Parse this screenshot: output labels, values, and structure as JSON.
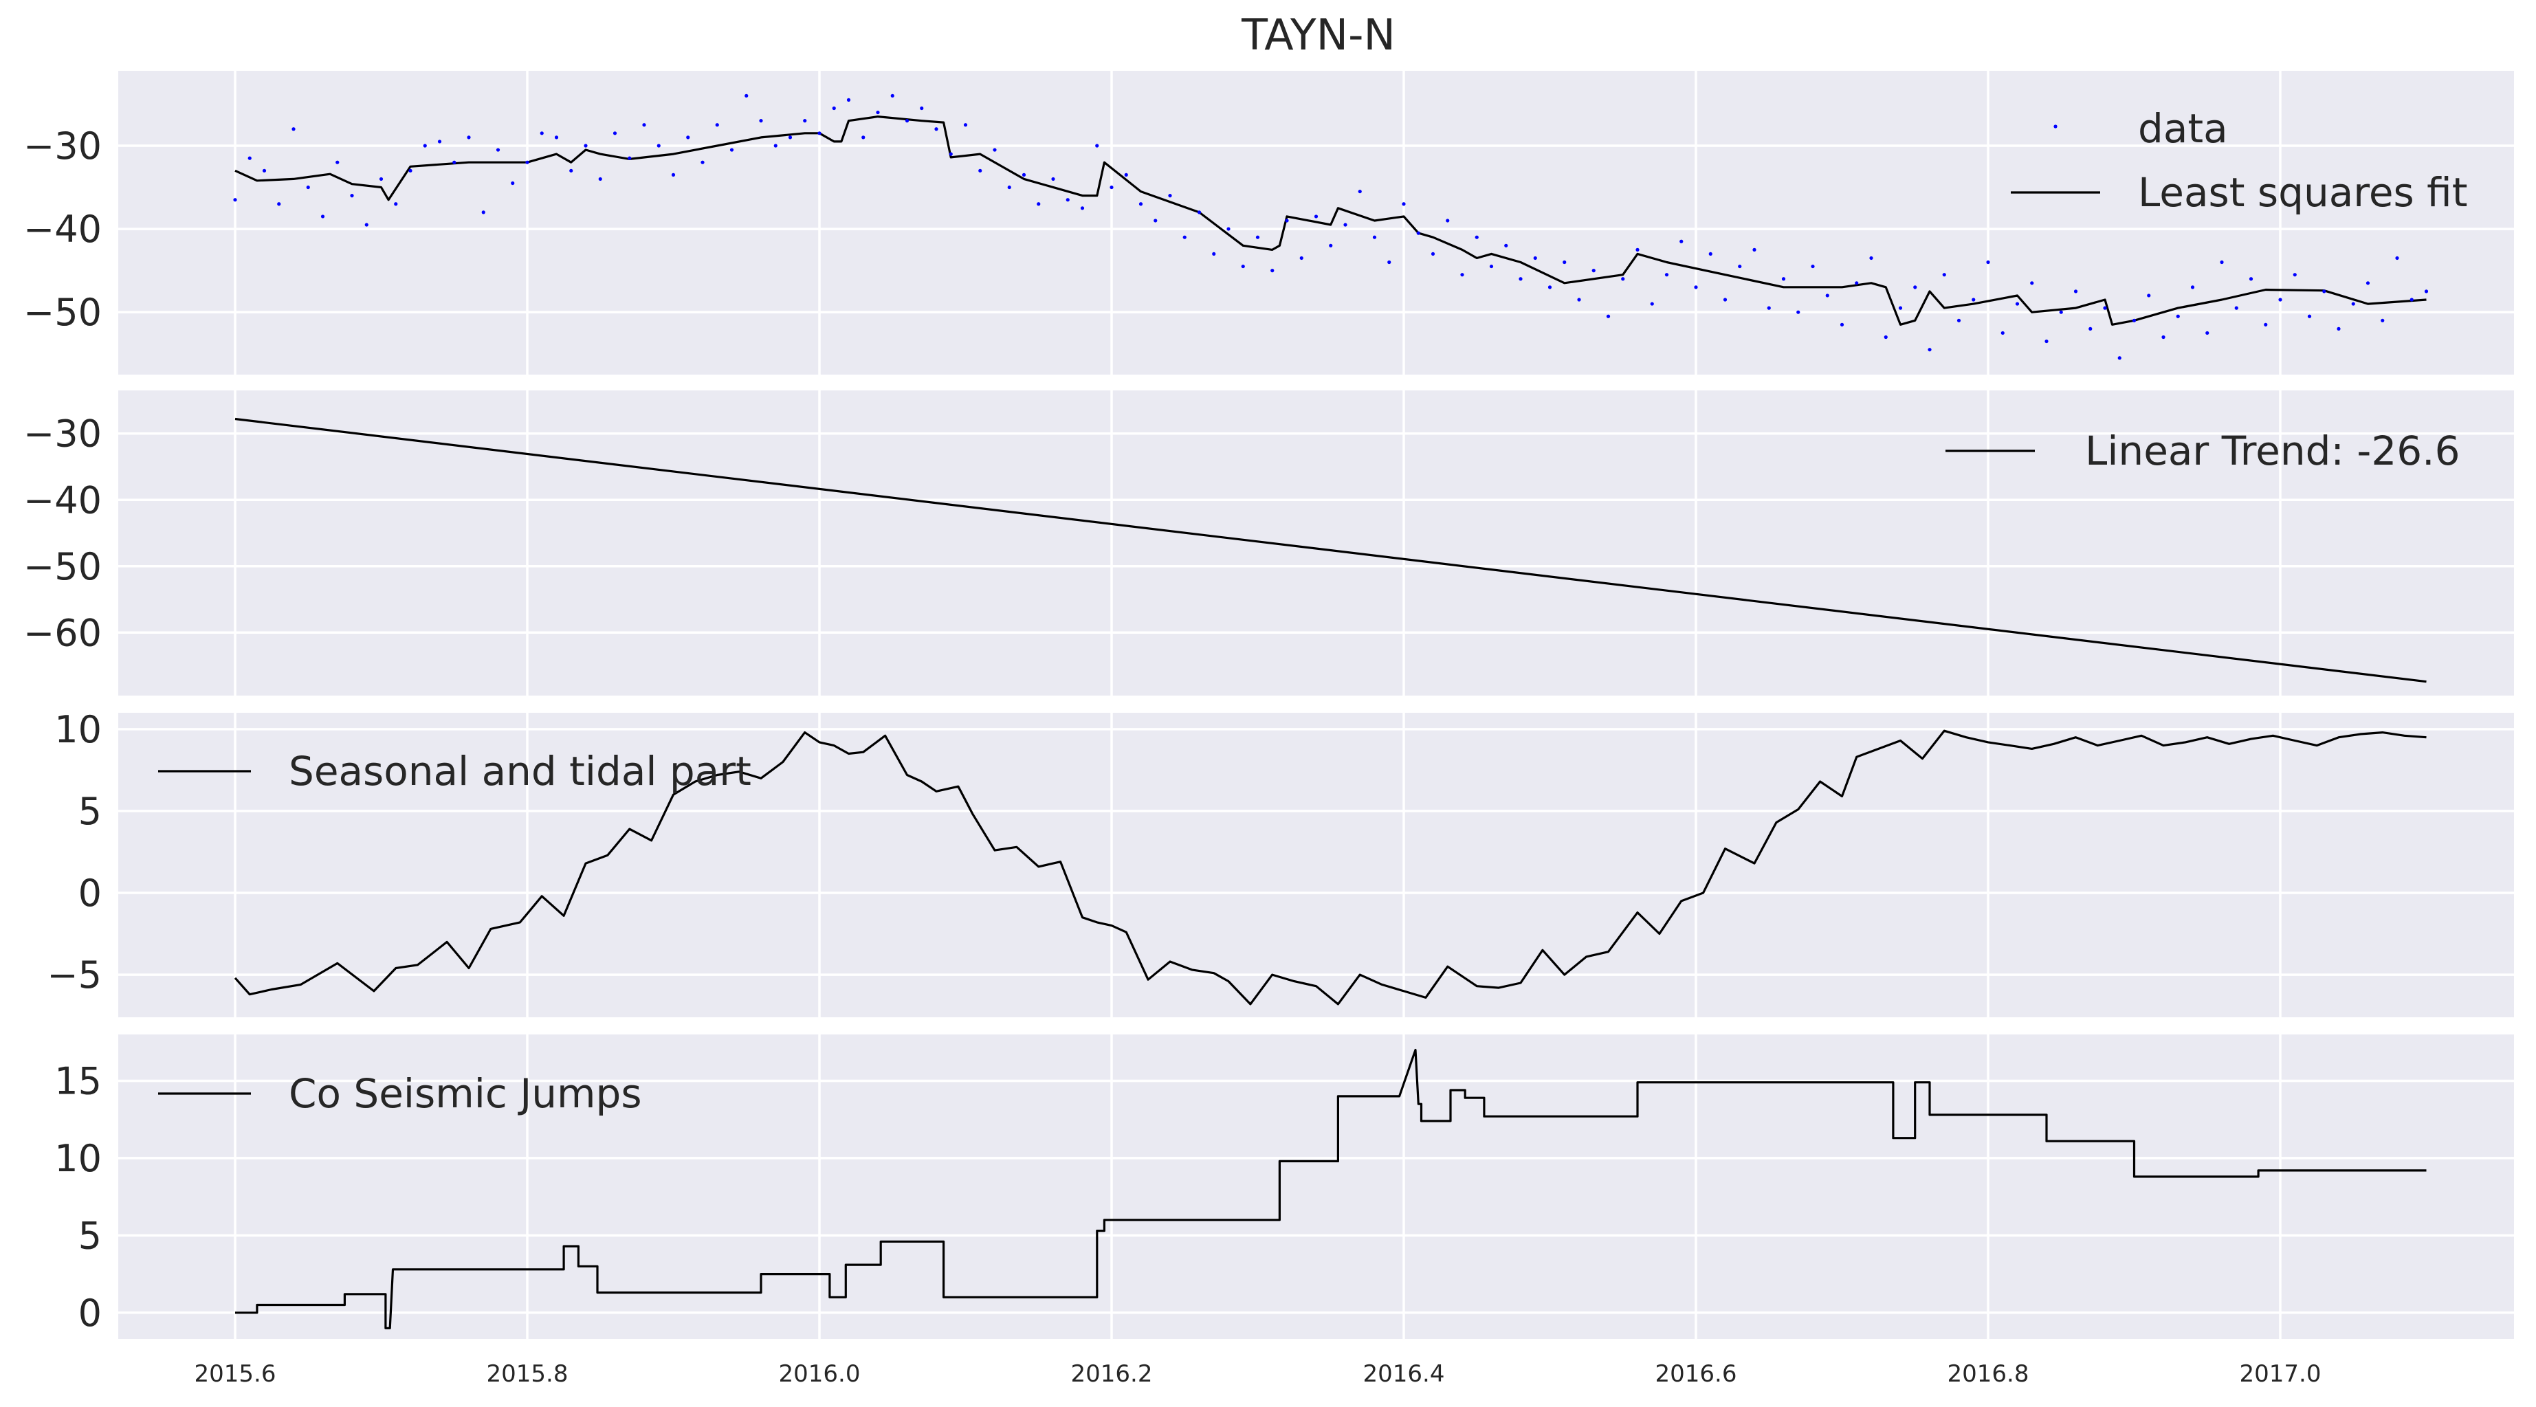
{
  "title": "TAYN-N",
  "colors": {
    "panel_background": "#EAEAF2",
    "grid": "#FFFFFF",
    "data_points": "#0000FF",
    "fit_line": "#000000",
    "text": "#262626"
  },
  "x_axis": {
    "range": [
      2015.52,
      2017.16
    ],
    "ticks": [
      2015.6,
      2015.8,
      2016.0,
      2016.2,
      2016.4,
      2016.6,
      2016.8,
      2017.0
    ],
    "tick_labels": [
      "2015.6",
      "2015.8",
      "2016.0",
      "2016.2",
      "2016.4",
      "2016.6",
      "2016.8",
      "2017.0"
    ]
  },
  "chart_data": [
    {
      "type": "scatter",
      "panel": "data_fit",
      "title": "TAYN-N",
      "legend": [
        "data",
        "Least squares fit"
      ],
      "legend_location": "top-right",
      "ylim": [
        -57.5,
        -21
      ],
      "yticks": [
        -30,
        -40,
        -50
      ],
      "ytick_labels": [
        "−30",
        "−40",
        "−50"
      ],
      "series": [
        {
          "name": "Least squares fit",
          "kind": "line",
          "x": [
            2015.6,
            2015.615,
            2015.64,
            2015.665,
            2015.68,
            2015.7,
            2015.705,
            2015.72,
            2015.76,
            2015.8,
            2015.82,
            2015.83,
            2015.84,
            2015.85,
            2015.87,
            2015.9,
            2015.93,
            2015.96,
            2015.99,
            2016.0,
            2016.01,
            2016.015,
            2016.02,
            2016.04,
            2016.07,
            2016.085,
            2016.09,
            2016.11,
            2016.14,
            2016.18,
            2016.19,
            2016.195,
            2016.22,
            2016.26,
            2016.29,
            2016.31,
            2016.315,
            2016.32,
            2016.35,
            2016.355,
            2016.38,
            2016.4,
            2016.41,
            2016.42,
            2016.44,
            2016.45,
            2016.46,
            2016.48,
            2016.51,
            2016.55,
            2016.56,
            2016.58,
            2016.62,
            2016.66,
            2016.7,
            2016.72,
            2016.73,
            2016.74,
            2016.75,
            2016.76,
            2016.77,
            2016.79,
            2016.82,
            2016.83,
            2016.86,
            2016.88,
            2016.885,
            2016.9,
            2016.93,
            2016.96,
            2016.99,
            2017.03,
            2017.06,
            2017.1
          ],
          "y": [
            -33.0,
            -34.2,
            -34.0,
            -33.4,
            -34.6,
            -35.0,
            -36.5,
            -32.5,
            -32.0,
            -32.0,
            -31.0,
            -32.0,
            -30.5,
            -31.0,
            -31.6,
            -31.0,
            -30.0,
            -29.0,
            -28.5,
            -28.5,
            -29.5,
            -29.5,
            -27.0,
            -26.5,
            -27.0,
            -27.2,
            -31.4,
            -31.0,
            -34.0,
            -36.0,
            -36.0,
            -32.0,
            -35.5,
            -38.0,
            -42.0,
            -42.5,
            -42.0,
            -38.5,
            -39.5,
            -37.5,
            -39.0,
            -38.5,
            -40.5,
            -41.0,
            -42.5,
            -43.5,
            -43.0,
            -44.0,
            -46.5,
            -45.5,
            -43.0,
            -44.0,
            -45.5,
            -47.0,
            -47.0,
            -46.5,
            -47.0,
            -51.5,
            -51.0,
            -47.5,
            -49.5,
            -49.0,
            -48.0,
            -50.0,
            -49.5,
            -48.5,
            -51.5,
            -51.0,
            -49.5,
            -48.5,
            -47.3,
            -47.4,
            -49.0,
            -48.5
          ]
        },
        {
          "name": "data",
          "kind": "points",
          "x": [
            2015.6,
            2015.61,
            2015.62,
            2015.63,
            2015.64,
            2015.65,
            2015.66,
            2015.67,
            2015.68,
            2015.69,
            2015.7,
            2015.71,
            2015.72,
            2015.73,
            2015.74,
            2015.75,
            2015.76,
            2015.77,
            2015.78,
            2015.79,
            2015.8,
            2015.81,
            2015.82,
            2015.83,
            2015.84,
            2015.85,
            2015.86,
            2015.87,
            2015.88,
            2015.89,
            2015.9,
            2015.91,
            2015.92,
            2015.93,
            2015.94,
            2015.95,
            2015.96,
            2015.97,
            2015.98,
            2015.99,
            2016.0,
            2016.01,
            2016.02,
            2016.03,
            2016.04,
            2016.05,
            2016.06,
            2016.07,
            2016.08,
            2016.09,
            2016.1,
            2016.11,
            2016.12,
            2016.13,
            2016.14,
            2016.15,
            2016.16,
            2016.17,
            2016.18,
            2016.19,
            2016.2,
            2016.21,
            2016.22,
            2016.23,
            2016.24,
            2016.25,
            2016.26,
            2016.27,
            2016.28,
            2016.29,
            2016.3,
            2016.31,
            2016.32,
            2016.33,
            2016.34,
            2016.35,
            2016.36,
            2016.37,
            2016.38,
            2016.39,
            2016.4,
            2016.41,
            2016.42,
            2016.43,
            2016.44,
            2016.45,
            2016.46,
            2016.47,
            2016.48,
            2016.49,
            2016.5,
            2016.51,
            2016.52,
            2016.53,
            2016.54,
            2016.55,
            2016.56,
            2016.57,
            2016.58,
            2016.59,
            2016.6,
            2016.61,
            2016.62,
            2016.63,
            2016.64,
            2016.65,
            2016.66,
            2016.67,
            2016.68,
            2016.69,
            2016.7,
            2016.71,
            2016.72,
            2016.73,
            2016.74,
            2016.75,
            2016.76,
            2016.77,
            2016.78,
            2016.79,
            2016.8,
            2016.81,
            2016.82,
            2016.83,
            2016.84,
            2016.85,
            2016.86,
            2016.87,
            2016.88,
            2016.89,
            2016.9,
            2016.91,
            2016.92,
            2016.93,
            2016.94,
            2016.95,
            2016.96,
            2016.97,
            2016.98,
            2016.99,
            2017.0,
            2017.01,
            2017.02,
            2017.03,
            2017.04,
            2017.05,
            2017.06,
            2017.07,
            2017.08,
            2017.09,
            2017.1
          ],
          "y": [
            -36.5,
            -31.5,
            -33.0,
            -37.0,
            -28.0,
            -35.0,
            -38.5,
            -32.0,
            -36.0,
            -39.5,
            -34.0,
            -37.0,
            -33.0,
            -30.0,
            -29.5,
            -32.0,
            -29.0,
            -38.0,
            -30.5,
            -34.5,
            -32.0,
            -28.5,
            -29.0,
            -33.0,
            -30.0,
            -34.0,
            -28.5,
            -31.5,
            -27.5,
            -30.0,
            -33.5,
            -29.0,
            -32.0,
            -27.5,
            -30.5,
            -24.0,
            -27.0,
            -30.0,
            -29.0,
            -27.0,
            -28.5,
            -25.5,
            -24.5,
            -29.0,
            -26.0,
            -24.0,
            -27.0,
            -25.5,
            -28.0,
            -31.0,
            -27.5,
            -33.0,
            -30.5,
            -35.0,
            -33.5,
            -37.0,
            -34.0,
            -36.5,
            -37.5,
            -30.0,
            -35.0,
            -33.5,
            -37.0,
            -39.0,
            -36.0,
            -41.0,
            -38.0,
            -43.0,
            -40.0,
            -44.5,
            -41.0,
            -45.0,
            -39.0,
            -43.5,
            -38.5,
            -42.0,
            -39.5,
            -35.5,
            -41.0,
            -44.0,
            -37.0,
            -40.5,
            -43.0,
            -39.0,
            -45.5,
            -41.0,
            -44.5,
            -42.0,
            -46.0,
            -43.5,
            -47.0,
            -44.0,
            -48.5,
            -45.0,
            -50.5,
            -46.0,
            -42.5,
            -49.0,
            -45.5,
            -41.5,
            -47.0,
            -43.0,
            -48.5,
            -44.5,
            -42.5,
            -49.5,
            -46.0,
            -50.0,
            -44.5,
            -48.0,
            -51.5,
            -46.5,
            -43.5,
            -53.0,
            -49.5,
            -47.0,
            -54.5,
            -45.5,
            -51.0,
            -48.5,
            -44.0,
            -52.5,
            -49.0,
            -46.5,
            -53.5,
            -50.0,
            -47.5,
            -52.0,
            -49.5,
            -55.5,
            -51.0,
            -48.0,
            -53.0,
            -50.5,
            -47.0,
            -52.5,
            -44.0,
            -49.5,
            -46.0,
            -51.5,
            -48.5,
            -45.5,
            -50.5,
            -47.5,
            -52.0,
            -49.0,
            -46.5,
            -51.0,
            -43.5,
            -48.5,
            -47.5
          ]
        }
      ]
    },
    {
      "type": "line",
      "panel": "linear_trend",
      "legend": [
        "Linear Trend: -26.6"
      ],
      "legend_location": "top-right",
      "ylim": [
        -69.5,
        -23.5
      ],
      "yticks": [
        -30,
        -40,
        -50,
        -60
      ],
      "ytick_labels": [
        "−30",
        "−40",
        "−50",
        "−60"
      ],
      "series": [
        {
          "name": "Linear Trend: -26.6",
          "x": [
            2015.6,
            2017.1
          ],
          "y": [
            -27.8,
            -67.4
          ]
        }
      ]
    },
    {
      "type": "line",
      "panel": "seasonal",
      "legend": [
        "Seasonal and tidal part"
      ],
      "legend_location": "top-left",
      "ylim": [
        -7.6,
        11.0
      ],
      "yticks": [
        10,
        5,
        0,
        -5
      ],
      "ytick_labels": [
        "10",
        "5",
        "0",
        "−5"
      ],
      "series": [
        {
          "name": "Seasonal and tidal part",
          "x": [
            2015.6,
            2015.61,
            2015.625,
            2015.645,
            2015.67,
            2015.695,
            2015.71,
            2015.725,
            2015.745,
            2015.76,
            2015.775,
            2015.795,
            2015.81,
            2015.825,
            2015.84,
            2015.855,
            2015.87,
            2015.885,
            2015.9,
            2015.915,
            2015.93,
            2015.945,
            2015.96,
            2015.975,
            2015.99,
            2016.0,
            2016.01,
            2016.02,
            2016.03,
            2016.045,
            2016.06,
            2016.07,
            2016.08,
            2016.095,
            2016.105,
            2016.12,
            2016.135,
            2016.15,
            2016.165,
            2016.18,
            2016.19,
            2016.2,
            2016.21,
            2016.225,
            2016.24,
            2016.255,
            2016.27,
            2016.28,
            2016.295,
            2016.31,
            2016.325,
            2016.34,
            2016.355,
            2016.37,
            2016.385,
            2016.4,
            2016.415,
            2016.43,
            2016.45,
            2016.465,
            2016.48,
            2016.495,
            2016.51,
            2016.525,
            2016.54,
            2016.56,
            2016.575,
            2016.59,
            2016.605,
            2016.62,
            2016.64,
            2016.655,
            2016.67,
            2016.685,
            2016.7,
            2016.71,
            2016.725,
            2016.74,
            2016.755,
            2016.77,
            2016.785,
            2016.8,
            2016.815,
            2016.83,
            2016.845,
            2016.86,
            2016.875,
            2016.89,
            2016.905,
            2016.92,
            2016.935,
            2016.95,
            2016.965,
            2016.98,
            2016.995,
            2017.01,
            2017.025,
            2017.04,
            2017.055,
            2017.07,
            2017.085,
            2017.1
          ],
          "y": [
            -5.2,
            -6.2,
            -5.9,
            -5.6,
            -4.3,
            -6.0,
            -4.6,
            -4.4,
            -3.0,
            -4.6,
            -2.2,
            -1.8,
            -0.2,
            -1.4,
            1.8,
            2.3,
            3.9,
            3.2,
            6.0,
            6.8,
            7.2,
            7.4,
            7.0,
            8.0,
            9.8,
            9.2,
            9.0,
            8.5,
            8.6,
            9.6,
            7.2,
            6.8,
            6.2,
            6.5,
            4.8,
            2.6,
            2.8,
            1.6,
            1.9,
            -1.5,
            -1.8,
            -2.0,
            -2.4,
            -5.3,
            -4.2,
            -4.7,
            -4.9,
            -5.4,
            -6.8,
            -5.0,
            -5.4,
            -5.7,
            -6.8,
            -5.0,
            -5.6,
            -6.0,
            -6.4,
            -4.5,
            -5.7,
            -5.8,
            -5.5,
            -3.5,
            -5.0,
            -3.9,
            -3.6,
            -1.2,
            -2.5,
            -0.5,
            0.0,
            2.7,
            1.8,
            4.3,
            5.1,
            6.8,
            5.9,
            8.3,
            8.8,
            9.3,
            8.2,
            9.9,
            9.5,
            9.2,
            9.0,
            8.8,
            9.1,
            9.5,
            9.0,
            9.3,
            9.6,
            9.0,
            9.2,
            9.5,
            9.1,
            9.4,
            9.6,
            9.3,
            9.0,
            9.5,
            9.7,
            9.8,
            9.6,
            9.5
          ]
        }
      ]
    },
    {
      "type": "line",
      "panel": "coseismic",
      "legend": [
        "Co Seismic Jumps"
      ],
      "legend_location": "top-left",
      "ylim": [
        -1.7,
        18.0
      ],
      "yticks": [
        15,
        10,
        5,
        0
      ],
      "ytick_labels": [
        "15",
        "10",
        "5",
        "0"
      ],
      "series": [
        {
          "name": "Co Seismic Jumps",
          "x": [
            2015.6,
            2015.615,
            2015.615,
            2015.675,
            2015.675,
            2015.703,
            2015.703,
            2015.706,
            2015.708,
            2015.81,
            2015.81,
            2015.825,
            2015.825,
            2015.835,
            2015.835,
            2015.848,
            2015.848,
            2015.96,
            2015.96,
            2016.007,
            2016.007,
            2016.018,
            2016.018,
            2016.042,
            2016.042,
            2016.085,
            2016.085,
            2016.19,
            2016.19,
            2016.195,
            2016.195,
            2016.315,
            2016.315,
            2016.355,
            2016.355,
            2016.397,
            2016.397,
            2016.408,
            2016.41,
            2016.412,
            2016.412,
            2016.432,
            2016.432,
            2016.442,
            2016.442,
            2016.455,
            2016.455,
            2016.478,
            2016.478,
            2016.56,
            2016.56,
            2016.735,
            2016.735,
            2016.75,
            2016.75,
            2016.76,
            2016.76,
            2016.84,
            2016.84,
            2016.9,
            2016.9,
            2016.985,
            2016.985,
            2017.1
          ],
          "y": [
            0.0,
            0.0,
            0.5,
            0.5,
            1.2,
            1.2,
            -1.0,
            -1.0,
            2.8,
            2.8,
            2.8,
            2.8,
            4.3,
            4.3,
            3.0,
            3.0,
            1.3,
            1.3,
            2.5,
            2.5,
            1.0,
            1.0,
            3.1,
            3.1,
            4.6,
            4.6,
            1.0,
            1.0,
            5.3,
            5.3,
            6.0,
            6.0,
            9.8,
            9.8,
            14.0,
            14.0,
            14.0,
            17.0,
            13.5,
            13.5,
            12.4,
            12.4,
            14.4,
            14.4,
            13.9,
            13.9,
            12.7,
            12.7,
            12.7,
            12.7,
            14.9,
            14.9,
            11.3,
            11.3,
            14.9,
            14.9,
            12.8,
            12.8,
            11.1,
            11.1,
            8.8,
            8.8,
            9.2,
            9.2
          ]
        }
      ]
    }
  ]
}
